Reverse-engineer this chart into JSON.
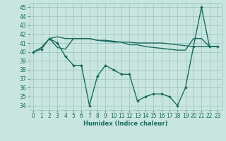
{
  "xlabel": "Humidex (Indice chaleur)",
  "xlim": [
    -0.5,
    23.5
  ],
  "ylim": [
    33.5,
    45.5
  ],
  "yticks": [
    34,
    35,
    36,
    37,
    38,
    39,
    40,
    41,
    42,
    43,
    44,
    45
  ],
  "xticks": [
    0,
    1,
    2,
    3,
    4,
    5,
    6,
    7,
    8,
    9,
    10,
    11,
    12,
    13,
    14,
    15,
    16,
    17,
    18,
    19,
    20,
    21,
    22,
    23
  ],
  "bg_color": "#c8e6df",
  "grid_color": "#a0c8c0",
  "line_color": "#1a6b60",
  "line1_x": [
    2,
    3,
    4,
    5,
    6,
    7,
    8,
    9,
    10,
    11,
    12,
    13,
    14,
    15,
    16,
    17,
    18,
    19,
    20,
    21,
    22,
    23
  ],
  "line1_y": [
    41.5,
    41.7,
    41.5,
    41.5,
    41.5,
    41.5,
    41.3,
    41.3,
    41.2,
    41.1,
    41.1,
    41.0,
    41.0,
    41.0,
    41.0,
    40.9,
    40.8,
    40.7,
    40.6,
    40.6,
    40.6,
    40.6
  ],
  "line2_x": [
    0,
    1,
    2,
    3,
    4,
    5,
    6,
    7,
    8,
    9,
    10,
    11,
    12,
    13,
    14,
    15,
    16,
    17,
    18,
    19,
    20,
    21,
    22,
    23
  ],
  "line2_y": [
    40.0,
    40.5,
    41.5,
    40.5,
    40.3,
    41.5,
    41.5,
    41.5,
    41.3,
    41.2,
    41.1,
    41.1,
    40.8,
    40.8,
    40.6,
    40.5,
    40.4,
    40.3,
    40.2,
    40.2,
    41.5,
    41.5,
    40.6,
    40.6
  ],
  "line3_x": [
    0,
    1,
    2,
    3,
    4,
    5,
    6,
    7,
    8,
    9,
    10,
    11,
    12,
    13,
    14,
    15,
    16,
    17,
    18,
    19,
    20,
    21,
    22,
    23
  ],
  "line3_y": [
    40.0,
    40.3,
    41.5,
    41.0,
    39.5,
    38.5,
    38.5,
    34.0,
    37.3,
    38.5,
    38.0,
    37.5,
    37.5,
    34.5,
    35.0,
    35.3,
    35.3,
    35.0,
    34.0,
    36.0,
    40.6,
    45.0,
    40.6,
    40.6
  ]
}
